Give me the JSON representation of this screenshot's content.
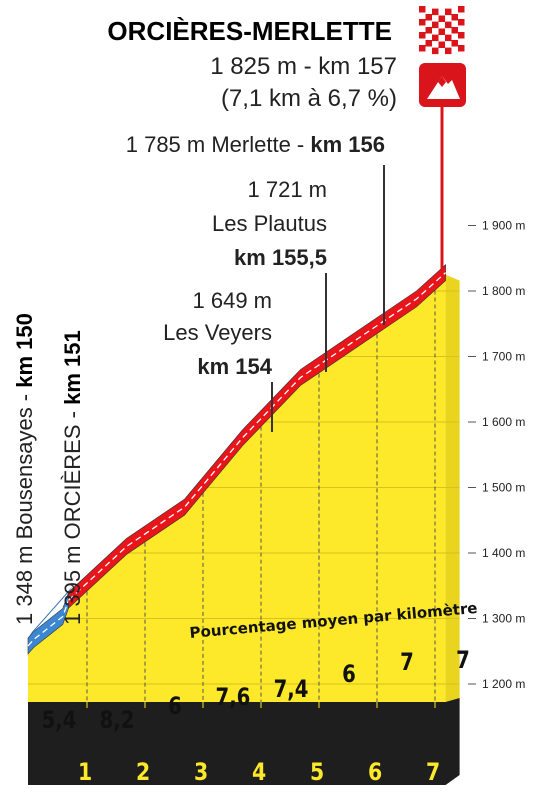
{
  "chart_data": {
    "type": "area",
    "title": "ORCIÈRES-MERLETTE",
    "summit": {
      "altitude_label": "1 825 m - km 157",
      "climb_label": "(7,1 km à 6,7 %)"
    },
    "caption": "Pourcentage moyen par kilomètre",
    "y_axis": {
      "ticks": [
        1200,
        1300,
        1400,
        1500,
        1600,
        1700,
        1800,
        1900
      ],
      "tick_labels": [
        "1 200 m",
        "1 300 m",
        "1 400 m",
        "1 500 m",
        "1 600 m",
        "1 700 m",
        "1 800 m",
        "1 900 m"
      ],
      "ylim": [
        1200,
        1900
      ]
    },
    "x_axis": {
      "ticks": [
        1,
        2,
        3,
        4,
        5,
        6,
        7
      ],
      "xlim": [
        0,
        7.5
      ]
    },
    "profile": [
      {
        "km": 0,
        "alt": 1255
      },
      {
        "km": 0.1,
        "alt": 1265
      },
      {
        "km": 0.6,
        "alt": 1300
      },
      {
        "km": 0.7,
        "alt": 1325
      },
      {
        "km": 1.7,
        "alt": 1407
      },
      {
        "km": 2.7,
        "alt": 1467
      },
      {
        "km": 3.7,
        "alt": 1573
      },
      {
        "km": 4.7,
        "alt": 1665
      },
      {
        "km": 5.7,
        "alt": 1725
      },
      {
        "km": 6.7,
        "alt": 1785
      },
      {
        "km": 7.2,
        "alt": 1825
      }
    ],
    "segments": [
      {
        "from": 0,
        "to": 0.7,
        "color": "#3d86d2"
      },
      {
        "from": 0.7,
        "to": 7.2,
        "color": "#e8151b"
      }
    ],
    "gradients": [
      "5,4",
      "8,2",
      "6",
      "7,6",
      "7,4",
      "6",
      "7",
      "7"
    ],
    "waypoints": [
      {
        "km_value": 0.1,
        "lines": [
          "1 348 m Bousensayes - ",
          "km 150"
        ],
        "vertical": true
      },
      {
        "km_value": 0.7,
        "lines": [
          "1 395 m ORCIÈRES - ",
          "km 151"
        ],
        "vertical": true
      },
      {
        "km_value": 4.3,
        "lines": [
          "1 649 m",
          "Les Veyers",
          "km 154"
        ]
      },
      {
        "km_value": 5.3,
        "lines": [
          "1 721 m",
          "Les Plautus",
          "km 155,5"
        ]
      },
      {
        "km_value": 6.3,
        "lines": [
          "1 785 m Merlette - ",
          "km 156"
        ]
      }
    ],
    "colors": {
      "profile_fill": "#fde92a",
      "climb_line": "#e8151b",
      "start_line": "#3d86d2",
      "base": "#1e1e1e",
      "checkered_red": "#d9141a",
      "summit_sign": "#d9141a"
    },
    "icons": [
      "checkered-flag-icon",
      "summit-mountain-icon"
    ]
  }
}
